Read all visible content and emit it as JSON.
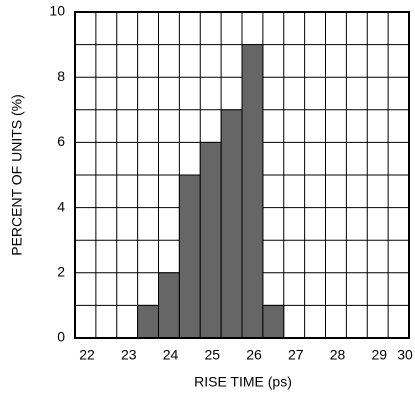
{
  "chart_data": {
    "type": "histogram",
    "x_label": "RISE TIME (ps)",
    "y_label": "PERCENT OF UNITS (%)",
    "bins": [
      23.5,
      24,
      24.5,
      25,
      25.5,
      26,
      26.5,
      27
    ],
    "values": [
      1,
      2,
      5,
      6,
      7,
      9,
      1
    ],
    "color": "#666666",
    "xlim": [
      22,
      30
    ],
    "xticks": [
      22,
      23,
      24,
      25,
      26,
      27,
      28,
      29,
      30
    ],
    "minor_xticks": [
      22.5,
      23.5,
      24.5,
      25.5,
      26.5,
      27.5,
      28.5,
      29.5
    ],
    "ylim": [
      0,
      10
    ],
    "yticks": [
      0,
      2,
      4,
      6,
      8,
      10
    ],
    "minor_yticks": [
      1,
      3,
      5,
      7,
      9
    ],
    "grid": true
  }
}
